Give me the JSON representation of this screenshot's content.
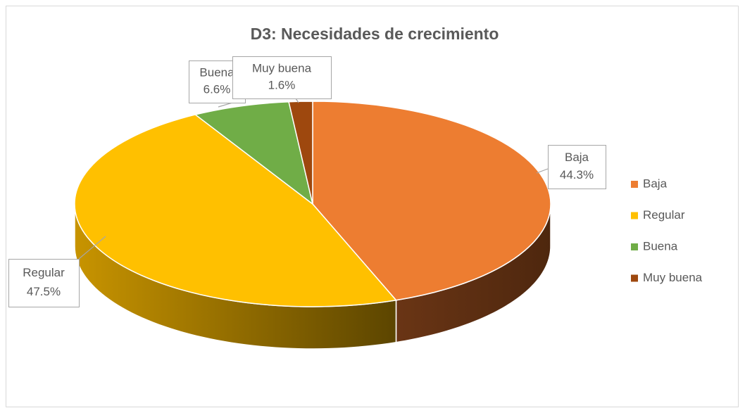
{
  "chart_data": {
    "type": "pie",
    "title": "D3: Necesidades de crecimiento",
    "categories": [
      "Baja",
      "Regular",
      "Buena",
      "Muy buena"
    ],
    "values": [
      44.3,
      47.5,
      6.6,
      1.6
    ],
    "value_labels": [
      "44.3%",
      "47.5%",
      "6.6%",
      "1.6%"
    ],
    "colors": [
      "#ED7D31",
      "#FFC000",
      "#70AD47",
      "#9E480E"
    ],
    "legend": "right",
    "three_d": true
  }
}
